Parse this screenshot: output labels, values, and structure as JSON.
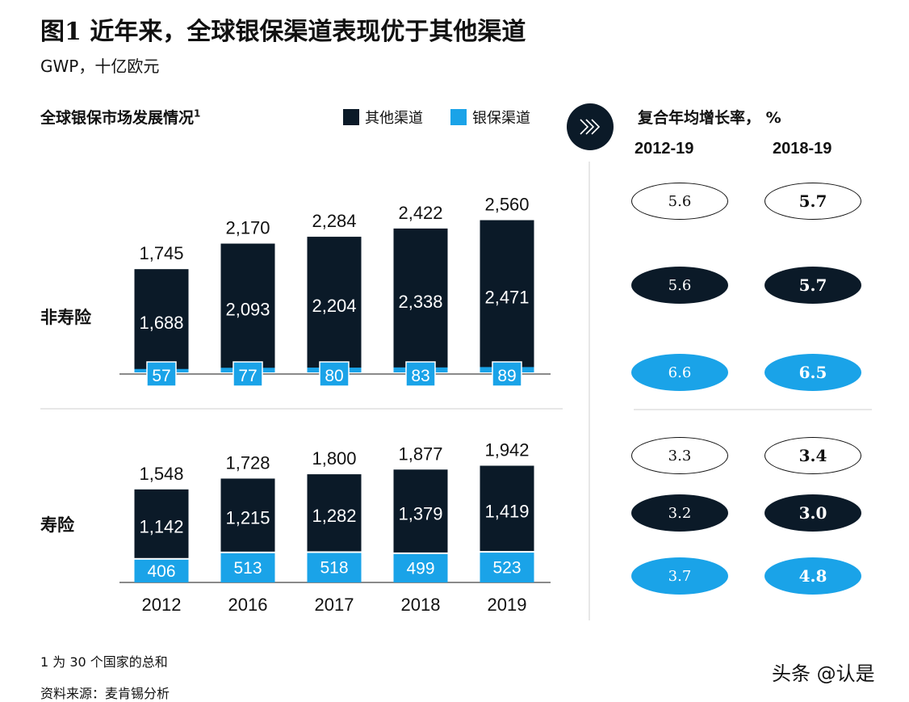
{
  "header": {
    "title": "图1 近年来，全球银保渠道表现优于其他渠道",
    "unit": "GWP，十亿欧元"
  },
  "section": {
    "title": "全球银保市场发展情况",
    "footnote_mark": "1"
  },
  "legend": {
    "other": {
      "label": "其他渠道",
      "color": "#0b1a28"
    },
    "banca": {
      "label": "银保渠道",
      "color": "#1aa3e8"
    }
  },
  "cagr": {
    "title": "复合年均增长率， %",
    "periods": [
      "2012-19",
      "2018-19"
    ],
    "nonlife": {
      "total": [
        "5.6",
        "5.7"
      ],
      "other": [
        "5.6",
        "5.7"
      ],
      "banca": [
        "6.6",
        "6.5"
      ]
    },
    "life": {
      "total": [
        "3.3",
        "3.4"
      ],
      "other": [
        "3.2",
        "3.0"
      ],
      "banca": [
        "3.7",
        "4.8"
      ]
    }
  },
  "chart_data": [
    {
      "type": "bar",
      "stacked": true,
      "categories": [
        "2012",
        "2016",
        "2017",
        "2018",
        "2019"
      ],
      "row_label": "非寿险",
      "series": [
        {
          "name": "银保渠道",
          "values": [
            57,
            77,
            80,
            83,
            89
          ]
        },
        {
          "name": "其他渠道",
          "values": [
            1688,
            2093,
            2204,
            2338,
            2471
          ]
        }
      ],
      "totals": [
        1745,
        2170,
        2284,
        2422,
        2560
      ],
      "value_labels": {
        "banca": [
          "57",
          "77",
          "80",
          "83",
          "89"
        ],
        "other": [
          "1,688",
          "2,093",
          "2,204",
          "2,338",
          "2,471"
        ],
        "totals": [
          "1,745",
          "2,170",
          "2,284",
          "2,422",
          "2,560"
        ]
      }
    },
    {
      "type": "bar",
      "stacked": true,
      "categories": [
        "2012",
        "2016",
        "2017",
        "2018",
        "2019"
      ],
      "row_label": "寿险",
      "series": [
        {
          "name": "银保渠道",
          "values": [
            406,
            513,
            518,
            499,
            523
          ]
        },
        {
          "name": "其他渠道",
          "values": [
            1142,
            1215,
            1282,
            1379,
            1419
          ]
        }
      ],
      "totals": [
        1548,
        1728,
        1800,
        1877,
        1942
      ],
      "value_labels": {
        "banca": [
          "406",
          "513",
          "518",
          "499",
          "523"
        ],
        "other": [
          "1,142",
          "1,215",
          "1,282",
          "1,379",
          "1,419"
        ],
        "totals": [
          "1,548",
          "1,728",
          "1,800",
          "1,877",
          "1,942"
        ]
      }
    }
  ],
  "footnotes": {
    "note1": "1 为 30 个国家的总和",
    "source": "资料来源：麦肯锡分析"
  },
  "watermark": "头条 @认是"
}
